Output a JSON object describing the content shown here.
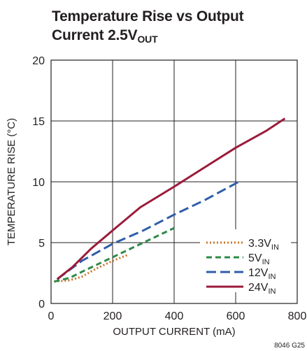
{
  "chart_data": {
    "type": "line",
    "title_main": "Temperature Rise vs Output",
    "title_line2": "Current 2.5V",
    "title_sub": "OUT",
    "xlabel": "OUTPUT CURRENT (mA)",
    "ylabel": "TEMPERATURE RISE (°C)",
    "xlim": [
      0,
      800
    ],
    "ylim": [
      0,
      20
    ],
    "xticks": [
      0,
      200,
      400,
      600,
      800
    ],
    "yticks": [
      0,
      5,
      10,
      15,
      20
    ],
    "grid": true,
    "legend_position": "bottom-right",
    "series": [
      {
        "name": "3.3V",
        "name_sub": "IN",
        "color": "#c8742a",
        "dash": "2,3",
        "x": [
          10,
          60,
          100,
          150,
          200,
          250
        ],
        "y": [
          1.8,
          1.9,
          2.2,
          2.9,
          3.5,
          4.0
        ]
      },
      {
        "name": "5V",
        "name_sub": "IN",
        "color": "#2e8a47",
        "dash": "8,5",
        "x": [
          10,
          60,
          100,
          150,
          200,
          300,
          400
        ],
        "y": [
          1.8,
          2.1,
          2.6,
          3.2,
          3.8,
          5.0,
          6.2
        ]
      },
      {
        "name": "12V",
        "name_sub": "IN",
        "color": "#2f5ea8",
        "dash": "14,6",
        "x": [
          20,
          100,
          200,
          300,
          400,
          500,
          610
        ],
        "y": [
          2.0,
          3.5,
          4.9,
          6.0,
          7.3,
          8.5,
          10.0
        ]
      },
      {
        "name": "24V",
        "name_sub": "IN",
        "color": "#9b1b3b",
        "dash": "",
        "x": [
          20,
          70,
          130,
          200,
          290,
          400,
          500,
          600,
          700,
          760
        ],
        "y": [
          2.0,
          3.0,
          4.5,
          6.0,
          7.9,
          9.6,
          11.2,
          12.8,
          14.2,
          15.2
        ]
      }
    ],
    "figure_id": "8046 G25"
  }
}
